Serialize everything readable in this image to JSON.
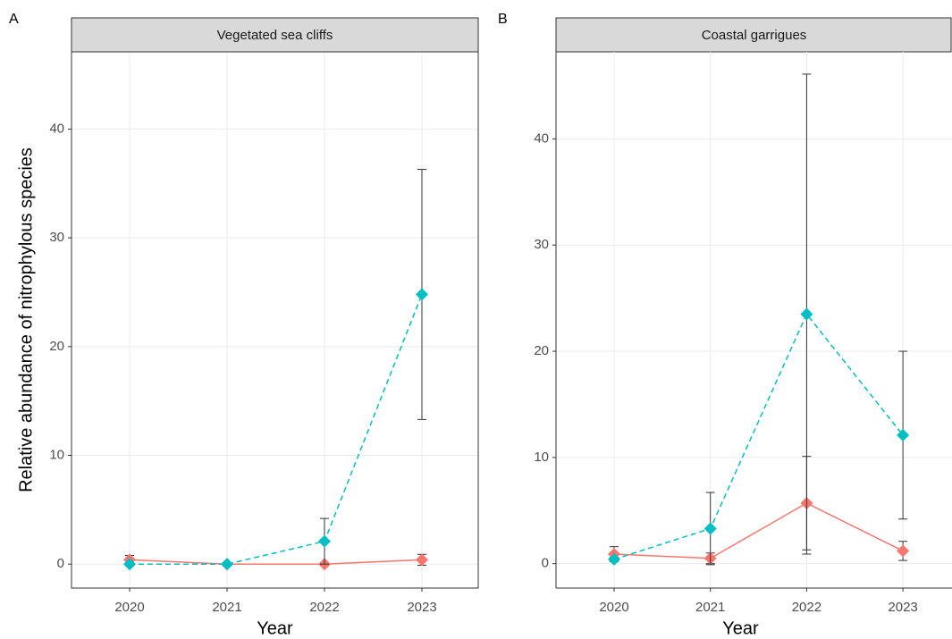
{
  "chart_data": [
    {
      "type": "line",
      "tag": "A",
      "title": "Vegetated sea cliffs",
      "ylabel": "Relative abundance of nitrophylous species",
      "xlabel": "Year",
      "categories": [
        "2020",
        "2021",
        "2022",
        "2023"
      ],
      "series": [
        {
          "color": "#f8766d",
          "linestyle": "solid",
          "values": [
            0.4,
            0.0,
            0.0,
            0.4
          ],
          "errors": [
            0.4,
            0.05,
            0.0,
            0.5
          ]
        },
        {
          "color": "#00bfc4",
          "linestyle": "dashed",
          "values": [
            0.0,
            0.0,
            2.1,
            24.8
          ],
          "errors": [
            0.0,
            0.0,
            2.1,
            11.5
          ]
        }
      ],
      "ylim": [
        -2.2,
        47.1
      ],
      "yticks": [
        0,
        10,
        20,
        30,
        40
      ],
      "grid": true
    },
    {
      "type": "line",
      "tag": "B",
      "title": "Coastal garrigues",
      "xlabel": "Year",
      "categories": [
        "2020",
        "2021",
        "2022",
        "2023"
      ],
      "series": [
        {
          "color": "#f8766d",
          "linestyle": "solid",
          "values": [
            0.9,
            0.5,
            5.7,
            1.2
          ],
          "errors": [
            0.7,
            0.5,
            4.4,
            0.9
          ]
        },
        {
          "color": "#00bfc4",
          "linestyle": "dashed",
          "values": [
            0.4,
            3.3,
            23.5,
            12.1
          ],
          "errors": [
            0.2,
            3.4,
            22.6,
            7.9
          ]
        }
      ],
      "ylim": [
        -2.3,
        48.2
      ],
      "yticks": [
        0,
        10,
        20,
        30,
        40
      ],
      "grid": true
    }
  ]
}
